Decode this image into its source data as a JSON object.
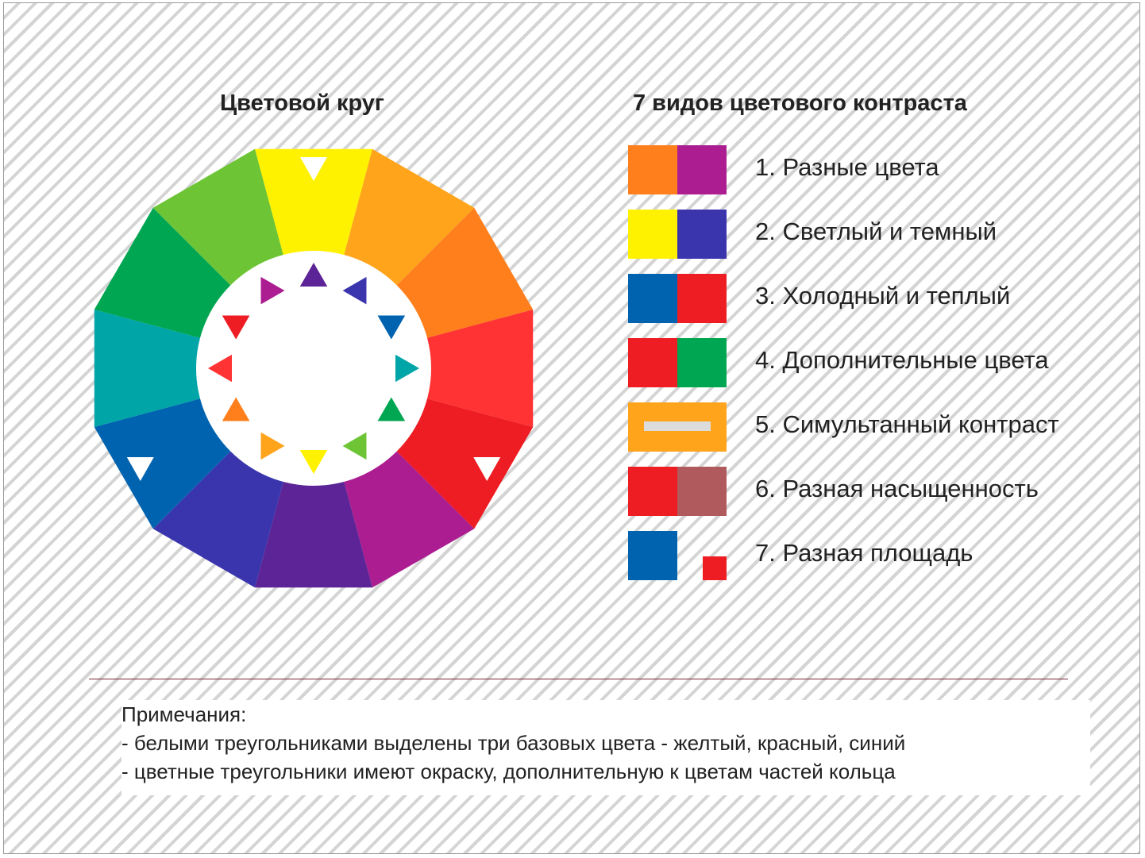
{
  "wheel_title": "Цветовой круг",
  "legend_title": "7 видов цветового контраста",
  "wheel": {
    "segments": [
      "#fff200",
      "#ffa41b",
      "#ff7f1c",
      "#ff3333",
      "#ee1d23",
      "#ab1d90",
      "#5c2496",
      "#3a35ad",
      "#0063b0",
      "#00a5a8",
      "#00a651",
      "#6dc536"
    ],
    "inner_triangles": [
      "#5c2496",
      "#3a35ad",
      "#0063b0",
      "#00a5a8",
      "#00a651",
      "#6dc536",
      "#fff200",
      "#ffa41b",
      "#ff7f1c",
      "#ff3333",
      "#ee1d23",
      "#ab1d90"
    ],
    "white_marker_segments": [
      0,
      4,
      8
    ]
  },
  "legend": [
    {
      "label": "1. Разные цвета",
      "colors": [
        "#ff7f1c",
        "#ab1d90"
      ]
    },
    {
      "label": "2. Светлый и темный",
      "colors": [
        "#fff200",
        "#3a35ad"
      ]
    },
    {
      "label": "3. Холодный и теплый",
      "colors": [
        "#0063b0",
        "#ee1d23"
      ]
    },
    {
      "label": "4. Дополнительные цвета",
      "colors": [
        "#ee1d23",
        "#00a651"
      ]
    },
    {
      "label": "5. Симультанный контраст",
      "colors": [
        "#ffa41b",
        "#dcdcdc"
      ]
    },
    {
      "label": "6. Разная насыщенность",
      "colors": [
        "#ee1d23",
        "#b05a5e"
      ]
    },
    {
      "label": "7. Разная площадь",
      "colors": [
        "#0063b0",
        "#ee1d23"
      ]
    }
  ],
  "notes": {
    "heading": "Примечания:",
    "line1": "- белыми треугольниками выделены три базовых цвета - желтый, красный, синий",
    "line2": "- цветные треугольники имеют окраску, дополнительную к цветам частей кольца"
  }
}
